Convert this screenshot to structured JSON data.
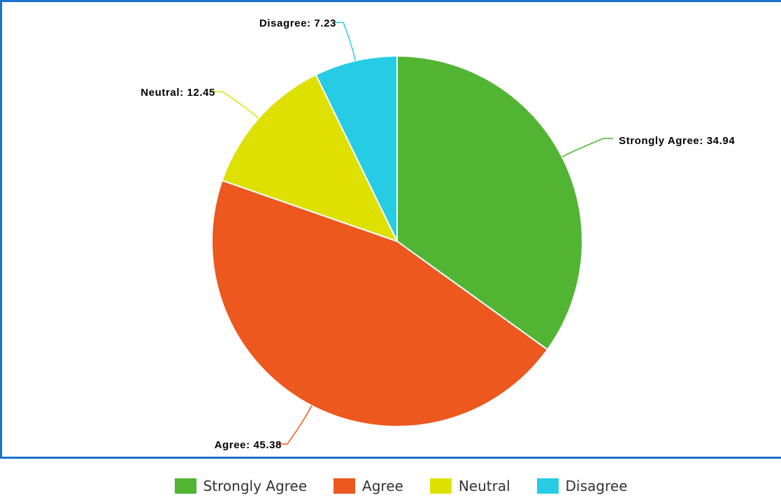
{
  "chart_data": {
    "type": "pie",
    "categories": [
      "Strongly Agree",
      "Agree",
      "Neutral",
      "Disagree"
    ],
    "values": [
      34.94,
      45.38,
      12.45,
      7.23
    ],
    "colors": [
      "#52b433",
      "#ec581e",
      "#dde000",
      "#26cce4"
    ],
    "data_labels": [
      "Strongly Agree: 34.94",
      "Agree: 45.38",
      "Neutral: 12.45",
      "Disagree: 7.23"
    ],
    "start_angle_deg": 0,
    "direction": "clockwise",
    "legend_position": "bottom"
  },
  "legend": {
    "items": [
      {
        "label": "Strongly Agree",
        "color": "#52b433"
      },
      {
        "label": "Agree",
        "color": "#ec581e"
      },
      {
        "label": "Neutral",
        "color": "#dde000"
      },
      {
        "label": "Disagree",
        "color": "#26cce4"
      }
    ]
  },
  "frame_color": "#1a73c9"
}
